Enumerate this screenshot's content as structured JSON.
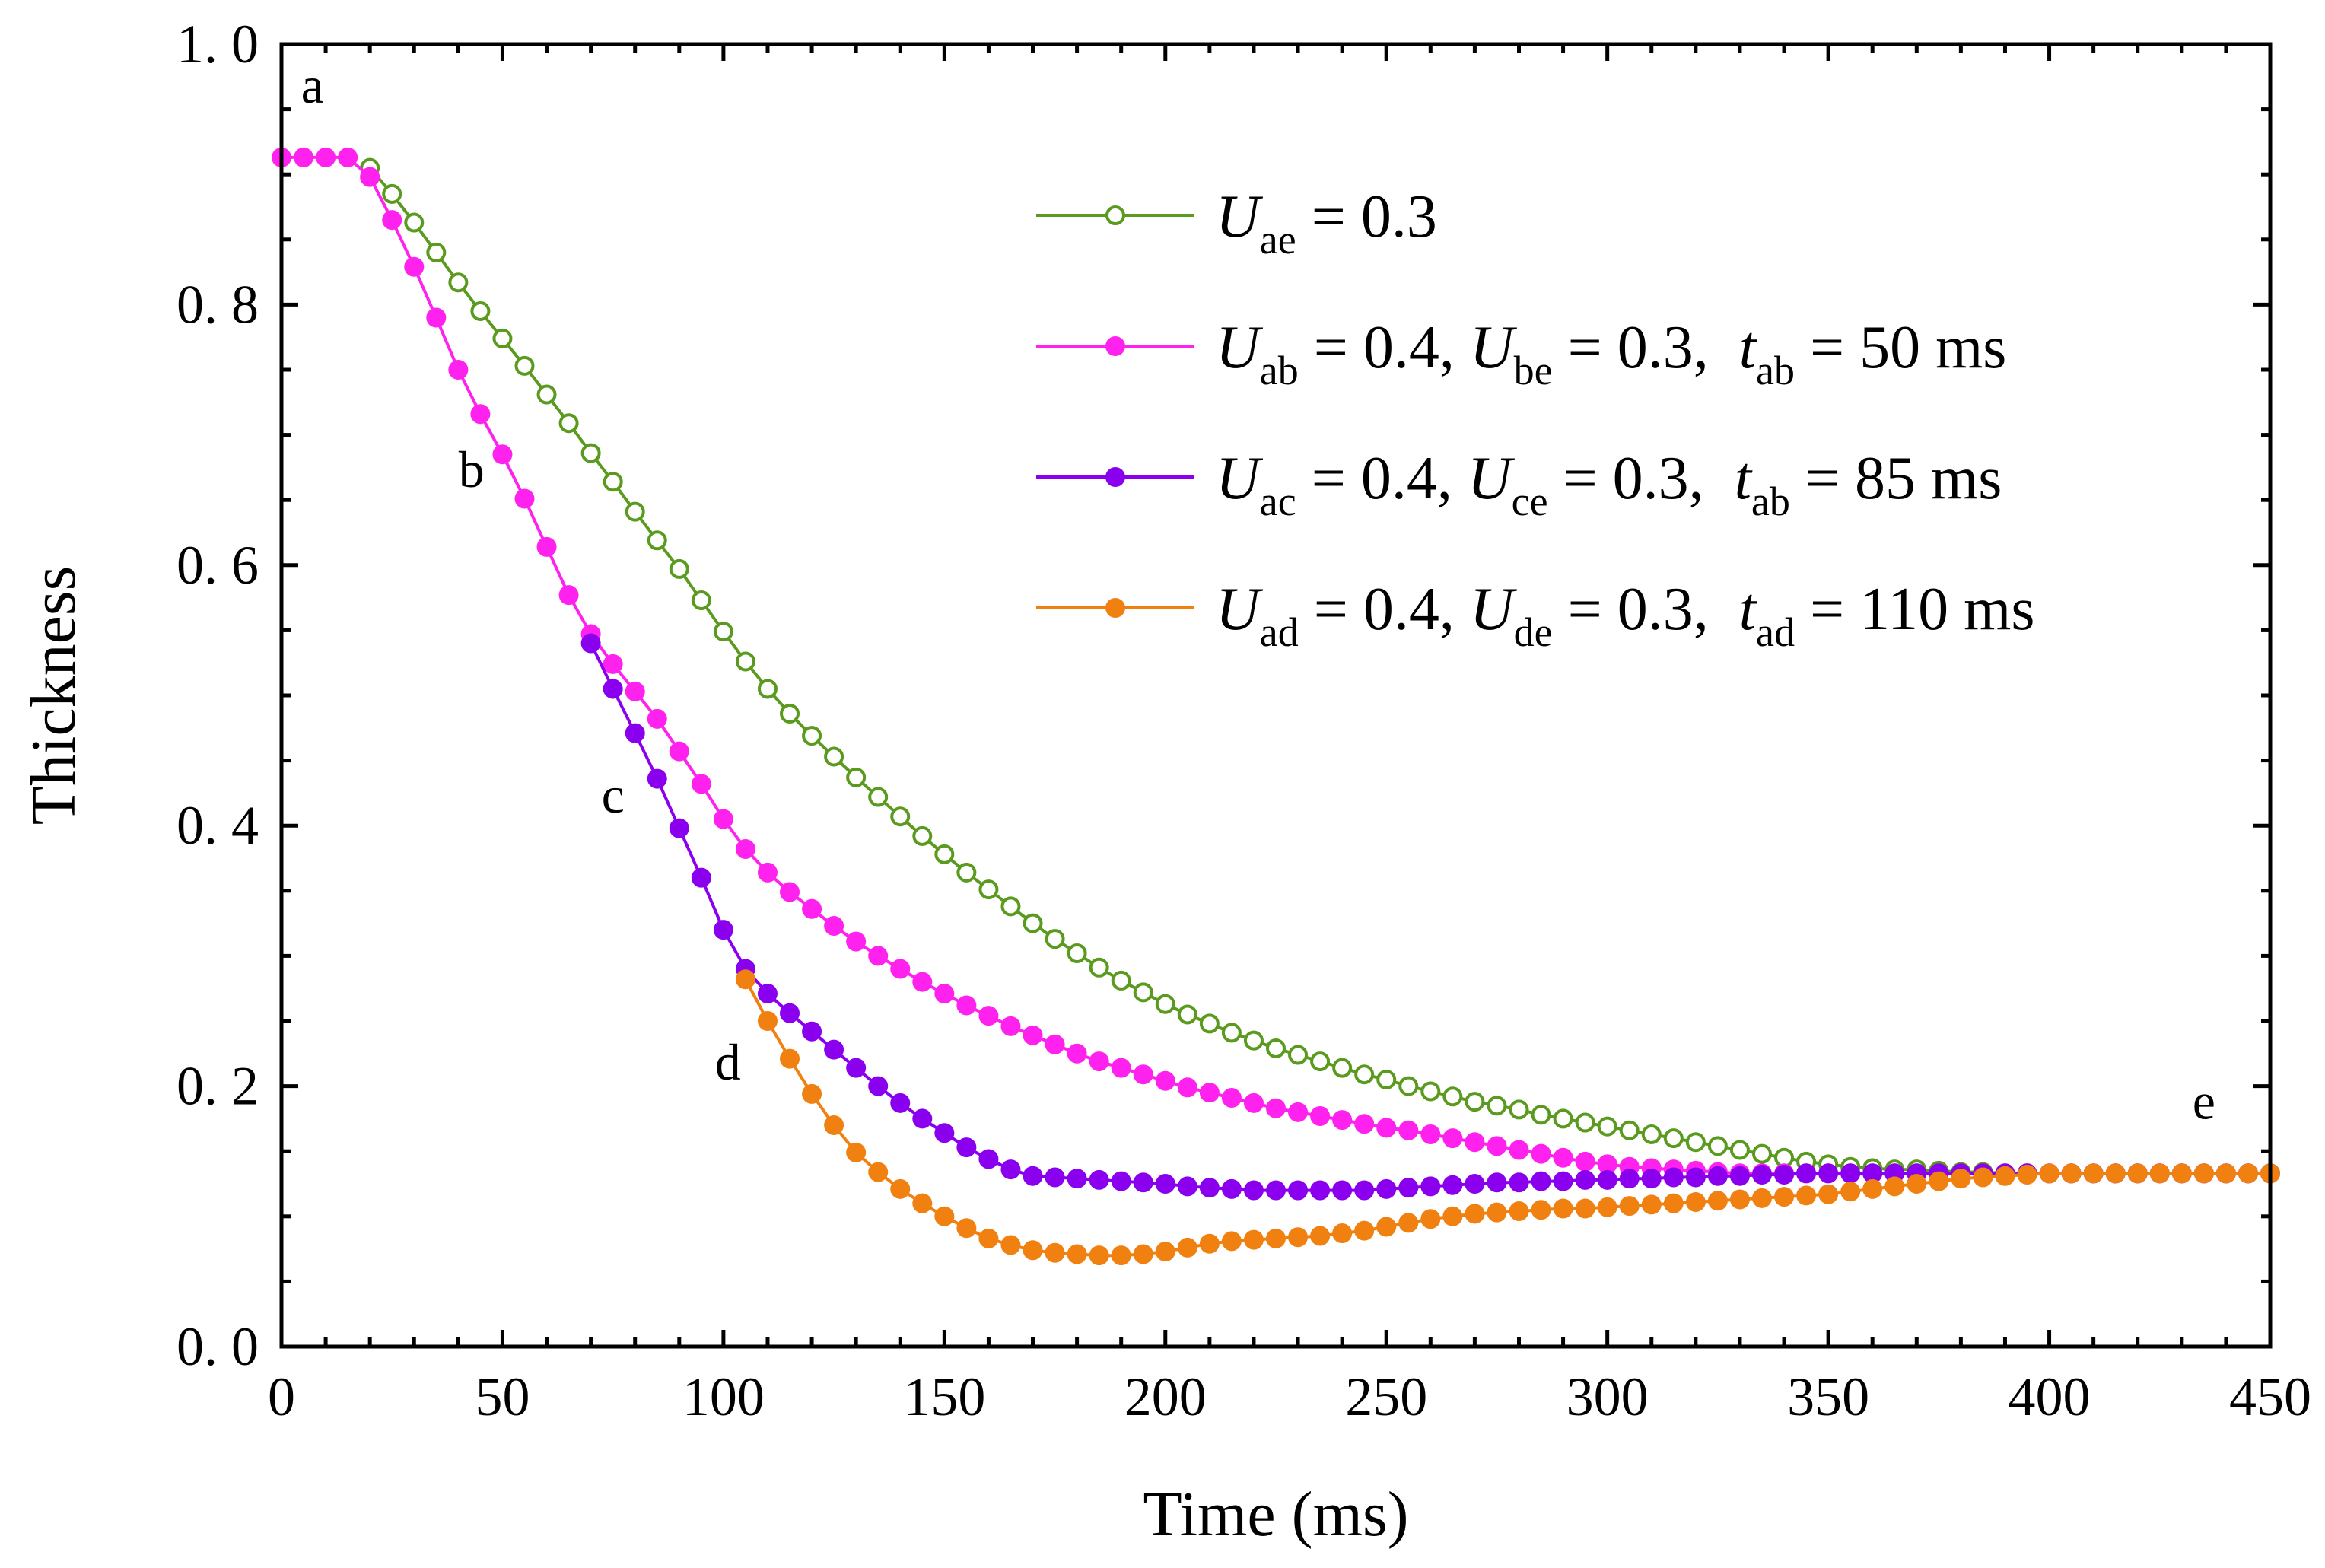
{
  "chart_data": {
    "type": "line",
    "title": "",
    "xlabel": "Time (ms)",
    "ylabel": "Thickness",
    "xlim": [
      0,
      450
    ],
    "ylim": [
      0.0,
      1.0
    ],
    "xticks": [
      "0",
      "50",
      "100",
      "150",
      "200",
      "250",
      "300",
      "350",
      "400",
      "450"
    ],
    "yticks": [
      "0. 0",
      "0. 2",
      "0. 4",
      "0. 6",
      "0. 8",
      "1. 0"
    ],
    "point_labels": [
      {
        "text": "a",
        "x": 7,
        "y": 0.955
      },
      {
        "text": "b",
        "x": 43,
        "y": 0.66
      },
      {
        "text": "c",
        "x": 75,
        "y": 0.41
      },
      {
        "text": "d",
        "x": 101,
        "y": 0.205
      },
      {
        "text": "e",
        "x": 435,
        "y": 0.175
      }
    ],
    "series": [
      {
        "name": "U_ae = 0.3",
        "legend": {
          "sym1": "U",
          "sub1": "ae",
          "rest": " = 0.3"
        },
        "color": "#5a9a1e",
        "marker": "open",
        "x": [
          20,
          25,
          30,
          35,
          40,
          45,
          50,
          55,
          60,
          65,
          70,
          75,
          80,
          85,
          90,
          95,
          100,
          105,
          110,
          115,
          120,
          125,
          130,
          135,
          140,
          145,
          150,
          155,
          160,
          165,
          170,
          175,
          180,
          185,
          190,
          195,
          200,
          205,
          210,
          215,
          220,
          225,
          230,
          235,
          240,
          245,
          250,
          255,
          260,
          265,
          270,
          275,
          280,
          285,
          290,
          295,
          300,
          305,
          310,
          315,
          320,
          325,
          330,
          335,
          340,
          345,
          350,
          355,
          360,
          365,
          370,
          375,
          380,
          385,
          390,
          395,
          400,
          405,
          410,
          415,
          420,
          425,
          430,
          435,
          440,
          445,
          450
        ],
        "y": [
          0.905,
          0.885,
          0.863,
          0.84,
          0.817,
          0.795,
          0.774,
          0.753,
          0.731,
          0.709,
          0.686,
          0.664,
          0.641,
          0.619,
          0.597,
          0.573,
          0.549,
          0.526,
          0.505,
          0.486,
          0.469,
          0.453,
          0.437,
          0.422,
          0.407,
          0.392,
          0.378,
          0.364,
          0.351,
          0.338,
          0.325,
          0.313,
          0.302,
          0.291,
          0.281,
          0.272,
          0.263,
          0.255,
          0.248,
          0.241,
          0.235,
          0.229,
          0.224,
          0.219,
          0.214,
          0.209,
          0.205,
          0.2,
          0.196,
          0.192,
          0.188,
          0.185,
          0.182,
          0.178,
          0.175,
          0.172,
          0.169,
          0.166,
          0.163,
          0.16,
          0.157,
          0.154,
          0.151,
          0.148,
          0.145,
          0.142,
          0.14,
          0.138,
          0.137,
          0.136,
          0.136,
          0.135,
          0.134,
          0.134,
          0.133,
          0.133,
          0.133,
          0.133,
          0.133,
          0.133,
          0.133,
          0.133,
          0.133,
          0.133,
          0.133,
          0.133,
          0.133
        ]
      },
      {
        "name": "U_ab = 0.4, U_be = 0.3, t_ab = 50 ms",
        "legend": {
          "sym1": "U",
          "sub1": "ab",
          "mid1": " = 0.4, ",
          "sym2": "U",
          "sub2": "be",
          "mid2": " = 0.3,  ",
          "sym3": "t",
          "sub3": "ab",
          "rest": " = 50 ms"
        },
        "color": "#ff22ee",
        "marker": "filled",
        "x": [
          0,
          5,
          10,
          15,
          20,
          25,
          30,
          35,
          40,
          45,
          50,
          55,
          60,
          65,
          70,
          75,
          80,
          85,
          90,
          95,
          100,
          105,
          110,
          115,
          120,
          125,
          130,
          135,
          140,
          145,
          150,
          155,
          160,
          165,
          170,
          175,
          180,
          185,
          190,
          195,
          200,
          205,
          210,
          215,
          220,
          225,
          230,
          235,
          240,
          245,
          250,
          255,
          260,
          265,
          270,
          275,
          280,
          285,
          290,
          295,
          300,
          305,
          310,
          315,
          320,
          325,
          330,
          335,
          340,
          345,
          350,
          355,
          360,
          365,
          370,
          375,
          380,
          385,
          390,
          395,
          400,
          405,
          410,
          415,
          420,
          425,
          430,
          435,
          440,
          445,
          450
        ],
        "y": [
          0.913,
          0.913,
          0.913,
          0.913,
          0.898,
          0.865,
          0.829,
          0.79,
          0.75,
          0.716,
          0.685,
          0.651,
          0.614,
          0.577,
          0.547,
          0.524,
          0.503,
          0.482,
          0.457,
          0.432,
          0.405,
          0.382,
          0.364,
          0.349,
          0.336,
          0.323,
          0.311,
          0.3,
          0.29,
          0.28,
          0.271,
          0.262,
          0.254,
          0.246,
          0.239,
          0.232,
          0.225,
          0.219,
          0.214,
          0.209,
          0.204,
          0.199,
          0.195,
          0.191,
          0.187,
          0.183,
          0.18,
          0.177,
          0.174,
          0.171,
          0.168,
          0.166,
          0.163,
          0.16,
          0.157,
          0.154,
          0.151,
          0.148,
          0.145,
          0.142,
          0.14,
          0.138,
          0.137,
          0.136,
          0.135,
          0.134,
          0.133,
          0.133,
          0.133,
          0.133,
          0.133,
          0.133,
          0.133,
          0.133,
          0.133,
          0.133,
          0.133,
          0.133,
          0.133,
          0.133,
          0.133,
          0.133,
          0.133,
          0.133,
          0.133,
          0.133,
          0.133,
          0.133,
          0.133,
          0.133,
          0.133
        ]
      },
      {
        "name": "U_ac = 0.4, U_ce = 0.3, t_ab = 85 ms",
        "legend": {
          "sym1": "U",
          "sub1": "ac",
          "mid1": " = 0.4, ",
          "sym2": "U",
          "sub2": "ce",
          "mid2": " = 0.3,  ",
          "sym3": "t",
          "sub3": "ab",
          "rest": " = 85 ms"
        },
        "color": "#8a00ee",
        "marker": "filled",
        "x": [
          70,
          75,
          80,
          85,
          90,
          95,
          100,
          105,
          110,
          115,
          120,
          125,
          130,
          135,
          140,
          145,
          150,
          155,
          160,
          165,
          170,
          175,
          180,
          185,
          190,
          195,
          200,
          205,
          210,
          215,
          220,
          225,
          230,
          235,
          240,
          245,
          250,
          255,
          260,
          265,
          270,
          275,
          280,
          285,
          290,
          295,
          300,
          305,
          310,
          315,
          320,
          325,
          330,
          335,
          340,
          345,
          350,
          355,
          360,
          365,
          370,
          375,
          380,
          385,
          390,
          395,
          400,
          405,
          410,
          415,
          420,
          425,
          430,
          435,
          440,
          445,
          450
        ],
        "y": [
          0.54,
          0.505,
          0.471,
          0.436,
          0.398,
          0.36,
          0.32,
          0.29,
          0.271,
          0.256,
          0.242,
          0.228,
          0.214,
          0.2,
          0.187,
          0.175,
          0.164,
          0.153,
          0.144,
          0.136,
          0.131,
          0.13,
          0.129,
          0.128,
          0.127,
          0.126,
          0.125,
          0.123,
          0.122,
          0.121,
          0.12,
          0.12,
          0.12,
          0.12,
          0.12,
          0.12,
          0.121,
          0.122,
          0.123,
          0.124,
          0.125,
          0.126,
          0.126,
          0.127,
          0.127,
          0.128,
          0.128,
          0.129,
          0.129,
          0.13,
          0.13,
          0.131,
          0.131,
          0.132,
          0.132,
          0.133,
          0.133,
          0.133,
          0.133,
          0.133,
          0.133,
          0.133,
          0.133,
          0.133,
          0.133,
          0.133,
          0.133,
          0.133,
          0.133,
          0.133,
          0.133,
          0.133,
          0.133,
          0.133,
          0.133,
          0.133,
          0.133
        ]
      },
      {
        "name": "U_ad = 0.4, U_de = 0.3, t_ad = 110 ms",
        "legend": {
          "sym1": "U",
          "sub1": "ad",
          "mid1": " = 0.4, ",
          "sym2": "U",
          "sub2": "de",
          "mid2": " = 0.3,  ",
          "sym3": "t",
          "sub3": "ad",
          "rest": " = 110 ms"
        },
        "color": "#f08010",
        "marker": "filled",
        "x": [
          105,
          110,
          115,
          120,
          125,
          130,
          135,
          140,
          145,
          150,
          155,
          160,
          165,
          170,
          175,
          180,
          185,
          190,
          195,
          200,
          205,
          210,
          215,
          220,
          225,
          230,
          235,
          240,
          245,
          250,
          255,
          260,
          265,
          270,
          275,
          280,
          285,
          290,
          295,
          300,
          305,
          310,
          315,
          320,
          325,
          330,
          335,
          340,
          345,
          350,
          355,
          360,
          365,
          370,
          375,
          380,
          385,
          390,
          395,
          400,
          405,
          410,
          415,
          420,
          425,
          430,
          435,
          440,
          445,
          450
        ],
        "y": [
          0.282,
          0.25,
          0.221,
          0.194,
          0.17,
          0.149,
          0.134,
          0.121,
          0.11,
          0.1,
          0.091,
          0.083,
          0.078,
          0.074,
          0.072,
          0.071,
          0.07,
          0.07,
          0.071,
          0.073,
          0.076,
          0.079,
          0.081,
          0.082,
          0.083,
          0.084,
          0.085,
          0.087,
          0.089,
          0.092,
          0.095,
          0.098,
          0.1,
          0.102,
          0.103,
          0.104,
          0.105,
          0.106,
          0.106,
          0.107,
          0.108,
          0.109,
          0.11,
          0.111,
          0.112,
          0.113,
          0.114,
          0.115,
          0.116,
          0.117,
          0.119,
          0.121,
          0.123,
          0.125,
          0.127,
          0.129,
          0.13,
          0.131,
          0.132,
          0.133,
          0.133,
          0.133,
          0.133,
          0.133,
          0.133,
          0.133,
          0.133,
          0.133,
          0.133,
          0.133
        ]
      }
    ]
  }
}
